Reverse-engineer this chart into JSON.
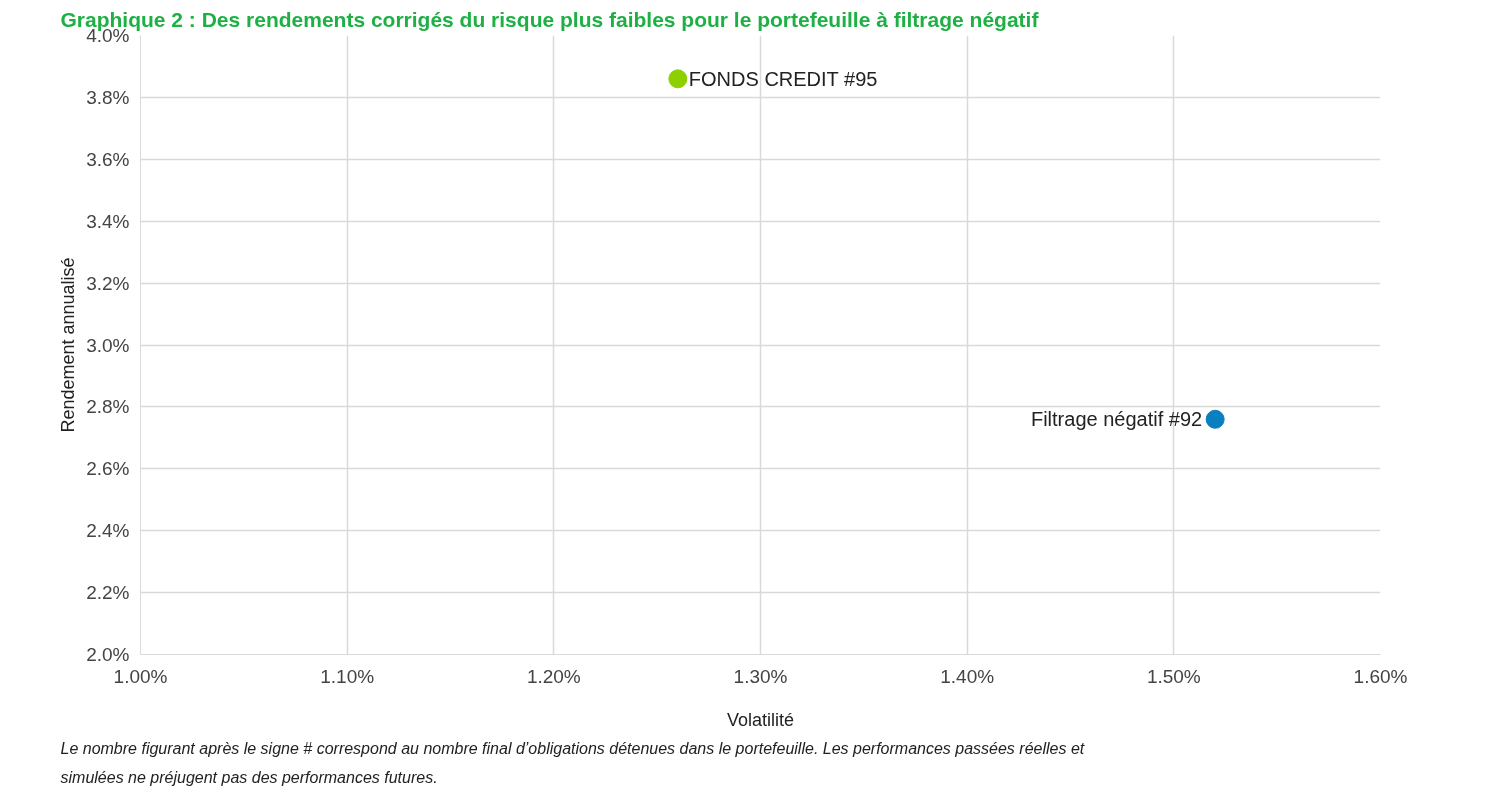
{
  "chart_data": {
    "type": "scatter",
    "title": "Graphique 2 : Des rendements corrigés du risque plus faibles pour le portefeuille à filtrage négatif",
    "xlabel": "Volatilité",
    "ylabel": "Rendement annualisé",
    "series": [
      {
        "name": "FONDS CREDIT #95",
        "color": "#8cd000",
        "x": [
          1.26
        ],
        "values": [
          3.86
        ]
      },
      {
        "name": "Filtrage négatif #92",
        "color": "#0a7fbf",
        "x": [
          1.52
        ],
        "values": [
          2.76
        ]
      }
    ],
    "xlim": [
      1.0,
      1.6
    ],
    "ylim": [
      2.0,
      4.0
    ],
    "xticks": [
      {
        "value": 1.0,
        "label": "1.00%"
      },
      {
        "value": 1.1,
        "label": "1.10%"
      },
      {
        "value": 1.2,
        "label": "1.20%"
      },
      {
        "value": 1.3,
        "label": "1.30%"
      },
      {
        "value": 1.4,
        "label": "1.40%"
      },
      {
        "value": 1.5,
        "label": "1.50%"
      },
      {
        "value": 1.6,
        "label": "1.60%"
      }
    ],
    "yticks": [
      {
        "value": 2.0,
        "label": "2.0%"
      },
      {
        "value": 2.2,
        "label": "2.2%"
      },
      {
        "value": 2.4,
        "label": "2.4%"
      },
      {
        "value": 2.6,
        "label": "2.6%"
      },
      {
        "value": 2.8,
        "label": "2.8%"
      },
      {
        "value": 3.0,
        "label": "3.0%"
      },
      {
        "value": 3.2,
        "label": "3.2%"
      },
      {
        "value": 3.4,
        "label": "3.4%"
      },
      {
        "value": 3.6,
        "label": "3.6%"
      },
      {
        "value": 3.8,
        "label": "3.8%"
      },
      {
        "value": 4.0,
        "label": "4.0%"
      }
    ],
    "grid": true,
    "legend": false,
    "marker": "circle",
    "annotations": [
      "Le nombre figurant après le signe # correspond au nombre final d’obligations détenues dans le portefeuille. Les performances passées réelles et simulées ne préjugent pas des performances futures."
    ]
  }
}
